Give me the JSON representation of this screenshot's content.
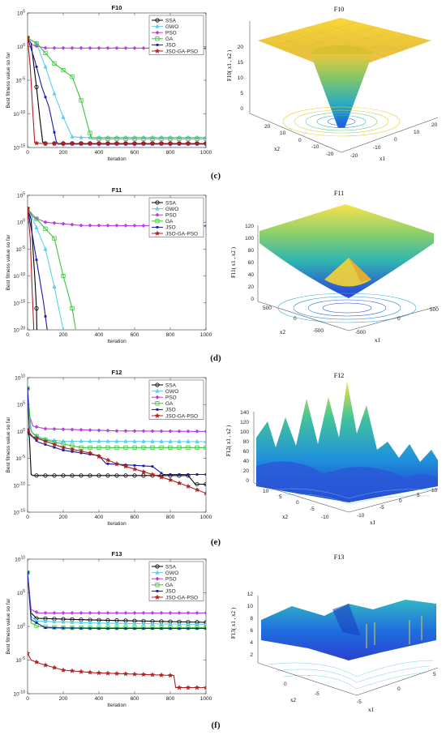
{
  "legend": [
    {
      "name": "SSA",
      "color": "#000000",
      "marker": "circle"
    },
    {
      "name": "GWO",
      "color": "#5bd0e8",
      "marker": "triangle"
    },
    {
      "name": "PSO",
      "color": "#b640e0",
      "marker": "diamond"
    },
    {
      "name": "GA",
      "color": "#3cc43c",
      "marker": "square"
    },
    {
      "name": "JSO",
      "color": "#1a1aa8",
      "marker": "square-small"
    },
    {
      "name": "JSO-GA-PSO",
      "color": "#b02020",
      "marker": "star"
    }
  ],
  "chart_data": [
    {
      "type": "line",
      "title": "F10",
      "xlabel": "Iteration",
      "ylabel": "Best fitness value so far",
      "log_y": true,
      "xlim": [
        0,
        1000
      ],
      "ylim_exp": [
        -15,
        5
      ],
      "xticks": [
        "0",
        "200",
        "400",
        "600",
        "800",
        "1000"
      ],
      "ytick_exps": [
        5,
        0,
        -5,
        -10,
        -15
      ],
      "legend_position": "top-right",
      "series": [
        {
          "name": "SSA",
          "points": [
            [
              0,
              1.3
            ],
            [
              20,
              0.5
            ],
            [
              50,
              -6
            ],
            [
              70,
              -11
            ],
            [
              85,
              -14.2
            ],
            [
              100,
              -14.4
            ],
            [
              150,
              -14.4
            ],
            [
              400,
              -14.4
            ],
            [
              1000,
              -14.4
            ]
          ]
        },
        {
          "name": "GWO",
          "points": [
            [
              0,
              1.3
            ],
            [
              50,
              0.5
            ],
            [
              100,
              -3
            ],
            [
              150,
              -7
            ],
            [
              200,
              -10.5
            ],
            [
              250,
              -13.4
            ],
            [
              300,
              -13.5
            ],
            [
              1000,
              -13.5
            ]
          ]
        },
        {
          "name": "PSO",
          "points": [
            [
              0,
              1.3
            ],
            [
              30,
              0.2
            ],
            [
              100,
              -0.2
            ],
            [
              1000,
              -0.25
            ]
          ]
        },
        {
          "name": "GA",
          "points": [
            [
              0,
              1.3
            ],
            [
              60,
              0.3
            ],
            [
              150,
              -2.5
            ],
            [
              250,
              -4.5
            ],
            [
              300,
              -8
            ],
            [
              340,
              -12
            ],
            [
              360,
              -13.7
            ],
            [
              1000,
              -13.7
            ]
          ]
        },
        {
          "name": "JSO",
          "points": [
            [
              0,
              1.3
            ],
            [
              40,
              -2
            ],
            [
              80,
              -6
            ],
            [
              120,
              -9
            ],
            [
              160,
              -14
            ],
            [
              170,
              -14.5
            ],
            [
              1000,
              -14.5
            ]
          ]
        },
        {
          "name": "JSO-GA-PSO",
          "points": [
            [
              0,
              1.3
            ],
            [
              15,
              -3
            ],
            [
              30,
              -10
            ],
            [
              40,
              -14.3
            ],
            [
              60,
              -14.4
            ],
            [
              1000,
              -14.4
            ]
          ]
        }
      ]
    },
    {
      "type": "line",
      "title": "F11",
      "xlabel": "Iteration",
      "ylabel": "Best fitness value so far",
      "log_y": true,
      "xlim": [
        0,
        1000
      ],
      "ylim_exp": [
        -20,
        5
      ],
      "xticks": [
        "0",
        "200",
        "400",
        "600",
        "800",
        "1000"
      ],
      "ytick_exps": [
        5,
        0,
        -5,
        -10,
        -15,
        -20
      ],
      "legend_position": "top-right",
      "series": [
        {
          "name": "SSA",
          "points": [
            [
              0,
              2.5
            ],
            [
              20,
              0.5
            ],
            [
              40,
              -10
            ],
            [
              50,
              -16
            ],
            [
              52,
              -20
            ]
          ]
        },
        {
          "name": "GWO",
          "points": [
            [
              0,
              2.5
            ],
            [
              50,
              -1
            ],
            [
              100,
              -5
            ],
            [
              150,
              -12
            ],
            [
              200,
              -20
            ]
          ]
        },
        {
          "name": "PSO",
          "points": [
            [
              0,
              2.5
            ],
            [
              30,
              1
            ],
            [
              100,
              0
            ],
            [
              300,
              -0.6
            ],
            [
              1000,
              -0.7
            ]
          ]
        },
        {
          "name": "GA",
          "points": [
            [
              0,
              2.5
            ],
            [
              80,
              -0.5
            ],
            [
              150,
              -3
            ],
            [
              200,
              -10
            ],
            [
              250,
              -16
            ],
            [
              270,
              -20
            ]
          ]
        },
        {
          "name": "JSO",
          "points": [
            [
              0,
              2.5
            ],
            [
              30,
              -3
            ],
            [
              60,
              -9
            ],
            [
              90,
              -15
            ],
            [
              110,
              -20
            ]
          ]
        },
        {
          "name": "JSO-GA-PSO",
          "points": [
            [
              0,
              2.5
            ],
            [
              15,
              -3
            ],
            [
              25,
              -12
            ],
            [
              35,
              -20
            ]
          ]
        }
      ]
    },
    {
      "type": "line",
      "title": "F12",
      "xlabel": "Iteration",
      "ylabel": "Best fitness value so far",
      "log_y": true,
      "xlim": [
        0,
        1000
      ],
      "ylim_exp": [
        -15,
        10
      ],
      "xticks": [
        "0",
        "200",
        "400",
        "600",
        "800",
        "1000"
      ],
      "ytick_exps": [
        10,
        5,
        0,
        -5,
        -10,
        -15
      ],
      "legend_position": "top-right",
      "series": [
        {
          "name": "SSA",
          "points": [
            [
              0,
              0.2
            ],
            [
              10,
              -1
            ],
            [
              20,
              -8
            ],
            [
              30,
              -8.2
            ],
            [
              900,
              -8.2
            ],
            [
              940,
              -9.8
            ],
            [
              1000,
              -9.8
            ]
          ]
        },
        {
          "name": "GWO",
          "points": [
            [
              0,
              8
            ],
            [
              10,
              1
            ],
            [
              30,
              -0.5
            ],
            [
              100,
              -1.5
            ],
            [
              200,
              -1.8
            ],
            [
              1000,
              -1.9
            ]
          ]
        },
        {
          "name": "PSO",
          "points": [
            [
              0,
              8
            ],
            [
              10,
              3
            ],
            [
              30,
              1
            ],
            [
              100,
              0.5
            ],
            [
              500,
              0.1
            ],
            [
              1000,
              0
            ]
          ]
        },
        {
          "name": "GA",
          "points": [
            [
              0,
              8
            ],
            [
              20,
              0
            ],
            [
              60,
              -1.2
            ],
            [
              150,
              -2
            ],
            [
              300,
              -3
            ],
            [
              1000,
              -3
            ]
          ]
        },
        {
          "name": "JSO",
          "points": [
            [
              0,
              8
            ],
            [
              10,
              -0.5
            ],
            [
              60,
              -2
            ],
            [
              200,
              -3.5
            ],
            [
              400,
              -4.5
            ],
            [
              440,
              -6
            ],
            [
              700,
              -6.5
            ],
            [
              760,
              -8
            ],
            [
              1000,
              -8
            ]
          ]
        },
        {
          "name": "JSO-GA-PSO",
          "points": [
            [
              0,
              0.2
            ],
            [
              30,
              -1
            ],
            [
              200,
              -3
            ],
            [
              350,
              -4
            ],
            [
              500,
              -6
            ],
            [
              650,
              -7.5
            ],
            [
              800,
              -9
            ],
            [
              900,
              -10.2
            ],
            [
              1000,
              -11.5
            ]
          ]
        }
      ]
    },
    {
      "type": "line",
      "title": "F13",
      "xlabel": "Iteration",
      "ylabel": "Best fitness value so far",
      "log_y": true,
      "xlim": [
        0,
        1000
      ],
      "ylim_exp": [
        -10,
        10
      ],
      "xticks": [
        "0",
        "200",
        "400",
        "600",
        "800",
        "1000"
      ],
      "ytick_exps": [
        10,
        5,
        0,
        -5,
        -10
      ],
      "legend_position": "top-right",
      "series": [
        {
          "name": "SSA",
          "points": [
            [
              0,
              8
            ],
            [
              20,
              2
            ],
            [
              50,
              1.2
            ],
            [
              300,
              1
            ],
            [
              1000,
              0.6
            ]
          ]
        },
        {
          "name": "GWO",
          "points": [
            [
              0,
              8
            ],
            [
              20,
              1.5
            ],
            [
              50,
              0.8
            ],
            [
              400,
              0.5
            ],
            [
              1000,
              0.3
            ]
          ]
        },
        {
          "name": "PSO",
          "points": [
            [
              0,
              8
            ],
            [
              20,
              2.5
            ],
            [
              60,
              2
            ],
            [
              1000,
              2
            ]
          ]
        },
        {
          "name": "GA",
          "points": [
            [
              0,
              8
            ],
            [
              20,
              0.5
            ],
            [
              60,
              0
            ],
            [
              200,
              -0.2
            ],
            [
              1000,
              -0.2
            ]
          ]
        },
        {
          "name": "JSO",
          "points": [
            [
              0,
              8
            ],
            [
              20,
              1
            ],
            [
              100,
              -0.2
            ],
            [
              400,
              -0.3
            ],
            [
              1000,
              -0.3
            ]
          ]
        },
        {
          "name": "JSO-GA-PSO",
          "points": [
            [
              0,
              -4
            ],
            [
              20,
              -5
            ],
            [
              80,
              -5.6
            ],
            [
              200,
              -6.5
            ],
            [
              380,
              -6.9
            ],
            [
              600,
              -7.1
            ],
            [
              820,
              -7.3
            ],
            [
              830,
              -9.1
            ],
            [
              1000,
              -9.1
            ]
          ]
        }
      ]
    }
  ],
  "surfaces": [
    {
      "title": "F10",
      "zlabel": "F10( x1 , x2 )",
      "zticks": [
        "20",
        "15",
        "10",
        "5",
        "0"
      ],
      "xlabel": "x2",
      "ylabel": "x1",
      "xticks": [
        "20",
        "10",
        "0",
        "-10",
        "-20"
      ],
      "yticks": [
        "-20",
        "-10",
        "0",
        "10",
        "20"
      ],
      "letter": "(c)"
    },
    {
      "title": "F11",
      "zlabel": "F11( x1 , x2 )",
      "zticks": [
        "120",
        "100",
        "80",
        "60",
        "40",
        "20",
        "0"
      ],
      "xlabel": "x2",
      "ylabel": "x1",
      "xticks": [
        "500",
        "0",
        "-500"
      ],
      "yticks": [
        "-500",
        "0",
        "500"
      ],
      "letter": "(d)"
    },
    {
      "title": "F12",
      "zlabel": "F12( x1 , x2 )",
      "zticks": [
        "140",
        "120",
        "100",
        "80",
        "60",
        "40",
        "20",
        "0"
      ],
      "xlabel": "x2",
      "ylabel": "x1",
      "xticks": [
        "10",
        "5",
        "0",
        "-5",
        "-10"
      ],
      "yticks": [
        "-10",
        "-5",
        "0",
        "5",
        "10"
      ],
      "letter": "(e)"
    },
    {
      "title": "F13",
      "zlabel": "F13( x1 , x2 )",
      "zticks": [
        "12",
        "10",
        "8",
        "6",
        "4",
        "2"
      ],
      "xlabel": "x2",
      "ylabel": "x1",
      "xticks": [
        "0",
        "-5"
      ],
      "yticks": [
        "-5",
        "0",
        "5"
      ],
      "letter": "(f)"
    }
  ]
}
